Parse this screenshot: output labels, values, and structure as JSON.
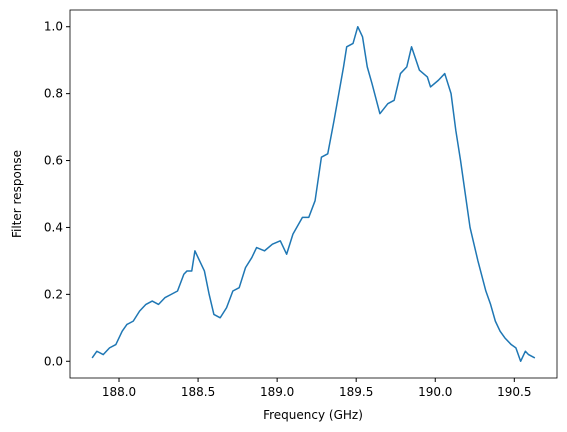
{
  "chart_data": {
    "type": "line",
    "x_label": "Frequency (GHz)",
    "y_label": "Filter response",
    "x": [
      187.83,
      187.86,
      187.9,
      187.94,
      187.98,
      188.02,
      188.05,
      188.09,
      188.13,
      188.17,
      188.21,
      188.25,
      188.29,
      188.33,
      188.37,
      188.41,
      188.43,
      188.46,
      188.48,
      188.51,
      188.54,
      188.57,
      188.6,
      188.64,
      188.68,
      188.72,
      188.76,
      188.8,
      188.84,
      188.87,
      188.92,
      188.97,
      189.02,
      189.06,
      189.1,
      189.16,
      189.2,
      189.24,
      189.28,
      189.32,
      189.36,
      189.39,
      189.42,
      189.44,
      189.48,
      189.51,
      189.54,
      189.57,
      189.6,
      189.65,
      189.7,
      189.74,
      189.78,
      189.82,
      189.85,
      189.9,
      189.95,
      189.97,
      190.02,
      190.06,
      190.1,
      190.13,
      190.16,
      190.19,
      190.22,
      190.27,
      190.32,
      190.35,
      190.38,
      190.41,
      190.44,
      190.48,
      190.51,
      190.54,
      190.57,
      190.59,
      190.63
    ],
    "series": [
      {
        "color": "#1f77b4",
        "values": [
          0.01,
          0.03,
          0.02,
          0.04,
          0.05,
          0.09,
          0.11,
          0.12,
          0.15,
          0.17,
          0.18,
          0.17,
          0.19,
          0.2,
          0.21,
          0.26,
          0.27,
          0.27,
          0.33,
          0.3,
          0.27,
          0.2,
          0.14,
          0.13,
          0.16,
          0.21,
          0.22,
          0.28,
          0.31,
          0.34,
          0.33,
          0.35,
          0.36,
          0.32,
          0.38,
          0.43,
          0.43,
          0.48,
          0.61,
          0.62,
          0.72,
          0.8,
          0.88,
          0.94,
          0.95,
          1.0,
          0.97,
          0.88,
          0.83,
          0.74,
          0.77,
          0.78,
          0.86,
          0.88,
          0.94,
          0.87,
          0.85,
          0.82,
          0.84,
          0.86,
          0.8,
          0.69,
          0.6,
          0.5,
          0.4,
          0.3,
          0.21,
          0.17,
          0.12,
          0.09,
          0.07,
          0.05,
          0.04,
          0.0,
          0.03,
          0.02,
          0.01
        ]
      }
    ],
    "xlim": [
      187.69,
      190.77
    ],
    "ylim": [
      -0.05,
      1.05
    ],
    "xticks": [
      {
        "value": 188,
        "label": "188.0"
      },
      188.5,
      {
        "value": 189,
        "label": "189.0"
      },
      189.5,
      {
        "value": 190,
        "label": "190.0"
      },
      190.5
    ],
    "yticks": [
      {
        "value": 0,
        "label": "0.0"
      },
      0.2,
      0.4,
      0.6,
      0.8,
      {
        "value": 1,
        "label": "1.0"
      }
    ],
    "grid": false
  }
}
